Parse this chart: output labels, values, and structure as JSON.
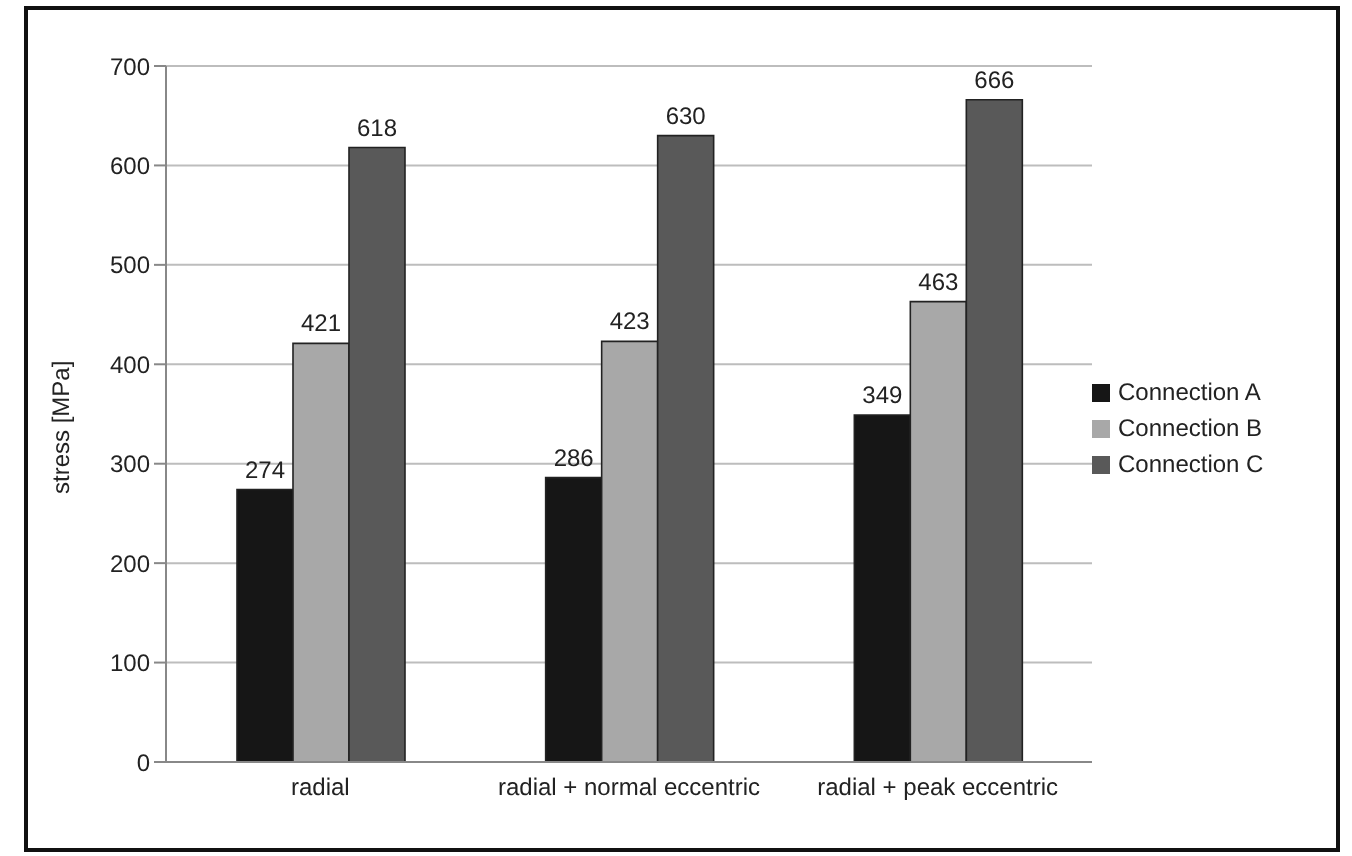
{
  "chart_data": {
    "type": "bar",
    "ylabel": "stress [MPa]",
    "categories": [
      "radial",
      "radial + normal eccentric",
      "radial + peak eccentric"
    ],
    "series": [
      {
        "name": "Connection A",
        "color": "#161616",
        "values": [
          274,
          286,
          349
        ]
      },
      {
        "name": "Connection B",
        "color": "#a8a8a8",
        "values": [
          421,
          423,
          463
        ]
      },
      {
        "name": "Connection C",
        "color": "#595959",
        "values": [
          618,
          630,
          666
        ]
      }
    ],
    "ylim": [
      0,
      700
    ],
    "yticks": [
      0,
      100,
      200,
      300,
      400,
      500,
      600,
      700
    ],
    "grid": "y",
    "legend": "right",
    "data_labels": true
  }
}
